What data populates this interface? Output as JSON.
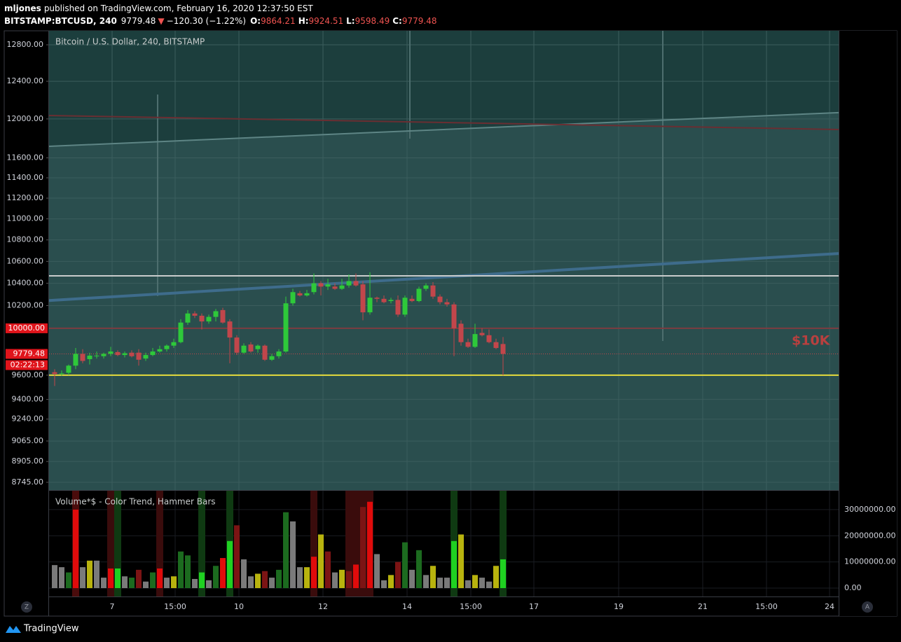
{
  "header": {
    "user": "mljones",
    "published": "published on TradingView.com, February 16, 2020 12:37:50 EST",
    "symbol": "BITSTAMP:BTCUSD, 240",
    "last": "9779.48",
    "arrow": "▼",
    "change": "−120.30 (−1.22%)",
    "ohlc": [
      {
        "key": "O:",
        "value": "9864.21"
      },
      {
        "key": "H:",
        "value": "9924.51"
      },
      {
        "key": "L:",
        "value": "9598.49"
      },
      {
        "key": "C:",
        "value": "9779.48"
      }
    ]
  },
  "chart_data": [
    {
      "type": "candlestick",
      "title": "Bitcoin / U.S. Dollar, 240, BITSTAMP",
      "log_scale": true,
      "grid": true,
      "up_color": "#2ec93a",
      "down_color": "#c2464b",
      "open": [
        9625,
        9610,
        9620,
        9680,
        9780,
        9735,
        9760,
        9760,
        9780,
        9795,
        9770,
        9790,
        9790,
        9740,
        9770,
        9800,
        9820,
        9850,
        9880,
        10050,
        10130,
        10110,
        10060,
        10100,
        10160,
        10060,
        9920,
        9790,
        9860,
        9820,
        9850,
        9730,
        9760,
        9800,
        10220,
        10310,
        10290,
        10320,
        10400,
        10370,
        10370,
        10350,
        10380,
        10420,
        10390,
        10140,
        10270,
        10260,
        10240,
        10250,
        10120,
        10260,
        10240,
        10350,
        10380,
        10280,
        10230,
        10210,
        10040,
        9880,
        9840,
        9960,
        9940,
        9880,
        9864.21
      ],
      "high": [
        9650,
        9640,
        9690,
        9830,
        9820,
        9790,
        9800,
        9790,
        9840,
        9810,
        9800,
        9810,
        9820,
        9790,
        9830,
        9850,
        9860,
        9910,
        10080,
        10160,
        10150,
        10130,
        10120,
        10170,
        10180,
        10080,
        9940,
        9870,
        9880,
        9860,
        9860,
        9780,
        9820,
        10280,
        10350,
        10330,
        10340,
        10490,
        10420,
        10440,
        10400,
        10440,
        10480,
        10490,
        10420,
        10500,
        10280,
        10290,
        10270,
        10290,
        10290,
        10290,
        10370,
        10400,
        10410,
        10300,
        10260,
        10230,
        10070,
        9910,
        10040,
        10000,
        9990,
        9910,
        9924.51
      ],
      "low": [
        9510,
        9595,
        9600,
        9650,
        9700,
        9690,
        9740,
        9740,
        9760,
        9760,
        9750,
        9750,
        9680,
        9720,
        9760,
        9790,
        9800,
        9830,
        9870,
        10030,
        10090,
        9990,
        10040,
        10060,
        10040,
        9700,
        9770,
        9780,
        9790,
        9790,
        9720,
        9720,
        9740,
        9790,
        10200,
        10280,
        10280,
        10300,
        10290,
        10340,
        10340,
        10340,
        10360,
        10370,
        10070,
        10120,
        10230,
        10220,
        10220,
        10100,
        10100,
        10230,
        10230,
        10330,
        10260,
        10210,
        10190,
        9760,
        9850,
        9830,
        9830,
        9930,
        9870,
        9820,
        9598.49
      ],
      "close": [
        9610,
        9615,
        9680,
        9780,
        9720,
        9765,
        9765,
        9780,
        9800,
        9770,
        9785,
        9760,
        9730,
        9770,
        9800,
        9820,
        9850,
        9880,
        10050,
        10130,
        10110,
        10060,
        10100,
        10150,
        10050,
        9920,
        9790,
        9850,
        9800,
        9850,
        9730,
        9760,
        9800,
        10220,
        10320,
        10290,
        10310,
        10400,
        10370,
        10390,
        10350,
        10380,
        10420,
        10380,
        10140,
        10270,
        10260,
        10230,
        10250,
        10120,
        10270,
        10240,
        10350,
        10380,
        10280,
        10230,
        10210,
        10000,
        9880,
        9840,
        9950,
        9940,
        9880,
        9830,
        9779.48
      ],
      "xlim": [
        -0.8,
        111.9
      ],
      "xticks": [
        {
          "value": 8.2,
          "label": "7"
        },
        {
          "value": 17.2,
          "label": "15:00"
        },
        {
          "value": 26.3,
          "label": "10"
        },
        {
          "value": 38.3,
          "label": "12"
        },
        {
          "value": 50.3,
          "label": "14"
        },
        {
          "value": 59.4,
          "label": "15:00"
        },
        {
          "value": 68.4,
          "label": "17"
        },
        {
          "value": 80.5,
          "label": "19"
        },
        {
          "value": 92.5,
          "label": "21"
        },
        {
          "value": 101.6,
          "label": "15:00"
        },
        {
          "value": 110.6,
          "label": "24"
        }
      ],
      "ylim": [
        8686,
        12957
      ],
      "yticks": [
        {
          "value": 12800,
          "label": "12800.00"
        },
        {
          "value": 12400,
          "label": "12400.00"
        },
        {
          "value": 12000,
          "label": "12000.00"
        },
        {
          "value": 11600,
          "label": "11600.00"
        },
        {
          "value": 11400,
          "label": "11400.00"
        },
        {
          "value": 11200,
          "label": "11200.00"
        },
        {
          "value": 11000,
          "label": "11000.00"
        },
        {
          "value": 10800,
          "label": "10800.00"
        },
        {
          "value": 10600,
          "label": "10600.00"
        },
        {
          "value": 10400,
          "label": "10400.00"
        },
        {
          "value": 10200,
          "label": "10200.00"
        },
        {
          "value": 9600,
          "label": "9600.00"
        },
        {
          "value": 9400,
          "label": "9400.00"
        },
        {
          "value": 9240,
          "label": "9240.00"
        },
        {
          "value": 9065,
          "label": "9065.00"
        },
        {
          "value": 8905,
          "label": "8905.00"
        },
        {
          "value": 8745,
          "label": "8745.00"
        }
      ],
      "hlines": [
        {
          "value": 10467,
          "color": "#c9cccc"
        },
        {
          "value": 10000,
          "color": "#7c3c40",
          "label": "10000.00"
        },
        {
          "value": 9600,
          "color": "#e6dc3c"
        }
      ],
      "trend_lines": [
        {
          "x": [
            -0.8,
            111.9
          ],
          "y": [
            11717,
            12066
          ],
          "color": "#5e8585"
        },
        {
          "x": [
            -0.8,
            111.9
          ],
          "y": [
            12036,
            11890
          ],
          "color": "#6a2e32"
        },
        {
          "x": [
            -0.8,
            111.9
          ],
          "y": [
            10245,
            10673
          ],
          "color": "#3e6c8c"
        }
      ],
      "last_price": {
        "value": 9779.48,
        "label": "9779.48",
        "countdown": "02:22:13"
      },
      "annotation": "$10K"
    },
    {
      "type": "bar",
      "title": "Volume*$ - Color Trend, Hammer Bars",
      "grid": true,
      "values": [
        8800000,
        8000000,
        6000000,
        30000000,
        8000000,
        10500000,
        10500000,
        4000000,
        7500000,
        7500000,
        4500000,
        4000000,
        7000000,
        2500000,
        6000000,
        7500000,
        4000000,
        4500000,
        14000000,
        12500000,
        3500000,
        6000000,
        3000000,
        8500000,
        11500000,
        18000000,
        24000000,
        11000000,
        4500000,
        5500000,
        6500000,
        4000000,
        7000000,
        29000000,
        25500000,
        8000000,
        8000000,
        12000000,
        20500000,
        14000000,
        6000000,
        7000000,
        6500000,
        9000000,
        31000000,
        33000000,
        13000000,
        3000000,
        5000000,
        10000000,
        17500000,
        7000000,
        14500000,
        5000000,
        8500000,
        4000000,
        4000000,
        18000000,
        20500000,
        3000000,
        5000000,
        4000000,
        2500000,
        8500000,
        11000000
      ],
      "colors": [
        "#7a7a7a",
        "#7a7a7a",
        "#1c6b1f",
        "#e00b0b",
        "#7a7a7a",
        "#b8b30e",
        "#7a7a7a",
        "#7a7a7a",
        "#e00b0b",
        "#1fd121",
        "#7a7a7a",
        "#1c6b1f",
        "#7c1414",
        "#7a7a7a",
        "#1c6b1f",
        "#e00b0b",
        "#7a7a7a",
        "#b8b30e",
        "#1c6b1f",
        "#1c6b1f",
        "#7a7a7a",
        "#1fd121",
        "#7a7a7a",
        "#1c6b1f",
        "#e00b0b",
        "#1fd121",
        "#7c1414",
        "#7a7a7a",
        "#7a7a7a",
        "#b8b30e",
        "#7c1414",
        "#7a7a7a",
        "#1c6b1f",
        "#1c6b1f",
        "#7a7a7a",
        "#7a7a7a",
        "#b8b30e",
        "#e00b0b",
        "#b8b30e",
        "#7c1414",
        "#7a7a7a",
        "#b8b30e",
        "#7c1414",
        "#e00b0b",
        "#7c1414",
        "#e00b0b",
        "#7a7a7a",
        "#7a7a7a",
        "#b8b30e",
        "#7c1414",
        "#1c6b1f",
        "#7a7a7a",
        "#1c6b1f",
        "#7a7a7a",
        "#b8b30e",
        "#7a7a7a",
        "#7a7a7a",
        "#1fd121",
        "#b8b30e",
        "#7a7a7a",
        "#b8b30e",
        "#7a7a7a",
        "#7a7a7a",
        "#b8b30e",
        "#1fd121"
      ],
      "highlights": [
        null,
        null,
        null,
        "#4a0c0c",
        null,
        null,
        null,
        null,
        "#3a0c0c",
        "#0f3a12",
        null,
        null,
        null,
        null,
        null,
        "#3a0c0c",
        null,
        null,
        null,
        null,
        null,
        "#0f3a12",
        null,
        null,
        null,
        "#0f3a12",
        null,
        null,
        null,
        null,
        null,
        null,
        null,
        null,
        null,
        null,
        null,
        "#3a0c0c",
        null,
        null,
        null,
        null,
        "#3a0c0c",
        "#3a0c0c",
        "#3a0c0c",
        "#3a0c0c",
        null,
        null,
        null,
        null,
        null,
        null,
        null,
        null,
        null,
        null,
        null,
        "#0f3a12",
        null,
        null,
        null,
        null,
        null,
        null,
        "#0f3a12"
      ],
      "ylim": [
        -3200000,
        37200000
      ],
      "yticks": [
        {
          "value": 30000000,
          "label": "30000000.00"
        },
        {
          "value": 20000000,
          "label": "20000000.00"
        },
        {
          "value": 10000000,
          "label": "10000000.00"
        },
        {
          "value": 0,
          "label": "0.00"
        }
      ]
    }
  ],
  "footer": {
    "brand": "TradingView",
    "left_button": "Z",
    "right_button": "A"
  }
}
